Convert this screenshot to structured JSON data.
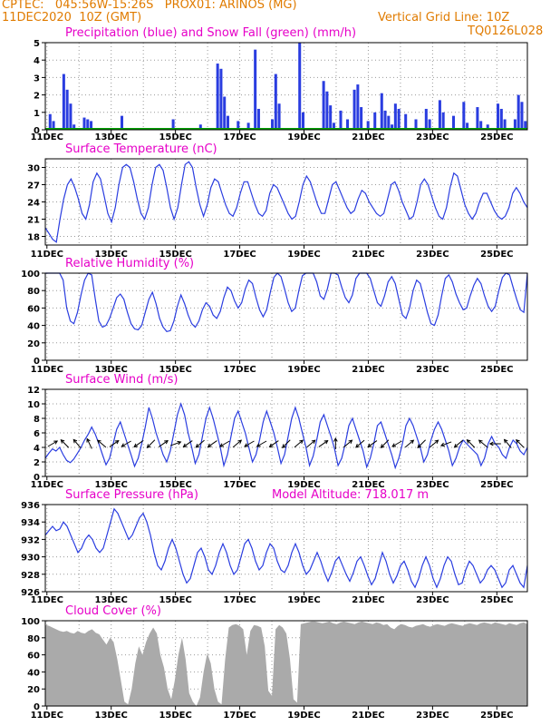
{
  "header": {
    "line1": "CPTEC:   045:56W-15:26S   PROX01: ARINOS (MG)",
    "line2_left": "11DEC2020  10Z (GMT)",
    "line2_right": "Vertical Grid Line: 10Z",
    "code": "TQ0126L028"
  },
  "colors": {
    "series": "#2a3de0",
    "snow": "#00a000",
    "title": "#e600c8",
    "header": "#e07b00",
    "cloud": "#aaaaaa"
  },
  "chart_data": [
    {
      "type": "bar",
      "title": "Precipitation (blue) and Snow Fall (green) (mm/h)",
      "x_tick_labels": [
        "11DEC",
        "13DEC",
        "15DEC",
        "17DEC",
        "19DEC",
        "21DEC",
        "23DEC",
        "25DEC"
      ],
      "y_ticks": [
        0,
        1,
        2,
        3,
        4,
        5
      ],
      "ylim": [
        0,
        5
      ],
      "series": [
        {
          "name": "Precipitation",
          "values": [
            0,
            0.9,
            0.5,
            0,
            0,
            3.2,
            2.3,
            1.5,
            0.3,
            0,
            0,
            0.7,
            0.6,
            0.5,
            0,
            0,
            0,
            0,
            0,
            0,
            0,
            0,
            0.8,
            0,
            0,
            0,
            0,
            0,
            0,
            0,
            0,
            0,
            0,
            0,
            0,
            0,
            0,
            0.6,
            0,
            0,
            0,
            0,
            0,
            0,
            0,
            0.3,
            0,
            0,
            0,
            0,
            3.8,
            3.5,
            1.9,
            0.8,
            0,
            0,
            0.5,
            0,
            0,
            0.4,
            0,
            4.6,
            1.2,
            0,
            0,
            0,
            0.6,
            3.2,
            1.5,
            0,
            0,
            0,
            0,
            0,
            5.0,
            1.0,
            0,
            0,
            0,
            0,
            0,
            2.8,
            2.2,
            1.4,
            0.4,
            0,
            1.1,
            0,
            0.6,
            0,
            2.3,
            2.6,
            1.3,
            0,
            0.5,
            0,
            1.0,
            0,
            2.1,
            1.1,
            0.8,
            0.3,
            1.5,
            1.2,
            0,
            0.9,
            0,
            0,
            0.6,
            0,
            0,
            1.2,
            0.6,
            0,
            0,
            1.7,
            1.0,
            0,
            0,
            0.8,
            0,
            0,
            1.6,
            0.4,
            0,
            0,
            1.3,
            0.5,
            0,
            0.3,
            0,
            0,
            1.5,
            1.2,
            0.6,
            0,
            0,
            0.6,
            2.0,
            1.6,
            0.5
          ]
        },
        {
          "name": "Snow Fall",
          "values": [
            0
          ]
        }
      ]
    },
    {
      "type": "line",
      "title": "Surface Temperature (nC)",
      "x_tick_labels": [
        "11DEC",
        "13DEC",
        "15DEC",
        "17DEC",
        "19DEC",
        "21DEC",
        "23DEC",
        "25DEC"
      ],
      "y_ticks": [
        18,
        21,
        24,
        27,
        30
      ],
      "ylim": [
        16.5,
        31.5
      ],
      "values": [
        19.5,
        18.5,
        17.5,
        17,
        21,
        24.5,
        27,
        28,
        26.5,
        24.5,
        22,
        21,
        23.5,
        27.5,
        29,
        28,
        25,
        22,
        20.5,
        23,
        27,
        30,
        30.5,
        30,
        27.5,
        24.5,
        22,
        21,
        23,
        27,
        30,
        30.5,
        29.5,
        26.5,
        23,
        21,
        23,
        27,
        30.5,
        31,
        30,
        26.5,
        23.5,
        21.5,
        23.5,
        26.5,
        28,
        27.5,
        25.5,
        23.5,
        22,
        21.5,
        23,
        25.5,
        27.5,
        27.5,
        25.5,
        23.5,
        22,
        21.5,
        22.5,
        25.5,
        27,
        26.5,
        25,
        23.5,
        22,
        21,
        21.5,
        24,
        27,
        28.5,
        27.5,
        25.5,
        23.5,
        22,
        22,
        24.5,
        27,
        27.5,
        26,
        24.5,
        23,
        22,
        22.5,
        24.5,
        26,
        25.5,
        24,
        23,
        22,
        21.5,
        22,
        24.5,
        27,
        27.5,
        26,
        24,
        22.5,
        21,
        21.5,
        24,
        27,
        28,
        27,
        25,
        23,
        21.5,
        21,
        23,
        26.5,
        29,
        28.5,
        26,
        23.5,
        22,
        21,
        22,
        24,
        25.5,
        25.5,
        24,
        22.5,
        21.5,
        21,
        21.5,
        23,
        25.5,
        26.5,
        25.5,
        24,
        23
      ]
    },
    {
      "type": "line",
      "title": "Relative Humidity (%)",
      "x_tick_labels": [
        "11DEC",
        "13DEC",
        "15DEC",
        "17DEC",
        "19DEC",
        "21DEC",
        "23DEC",
        "25DEC"
      ],
      "y_ticks": [
        0,
        20,
        40,
        60,
        80,
        100
      ],
      "ylim": [
        0,
        100
      ],
      "values": [
        100,
        100,
        100,
        100,
        100,
        92,
        60,
        45,
        42,
        55,
        75,
        92,
        100,
        98,
        70,
        45,
        38,
        40,
        48,
        60,
        72,
        76,
        70,
        55,
        42,
        36,
        35,
        40,
        55,
        70,
        78,
        65,
        48,
        38,
        33,
        34,
        45,
        62,
        75,
        65,
        52,
        42,
        38,
        45,
        58,
        66,
        62,
        52,
        48,
        56,
        72,
        84,
        80,
        68,
        60,
        66,
        82,
        92,
        88,
        72,
        58,
        50,
        58,
        78,
        95,
        100,
        96,
        82,
        66,
        56,
        60,
        80,
        97,
        100,
        100,
        100,
        90,
        74,
        70,
        82,
        100,
        100,
        98,
        84,
        72,
        66,
        75,
        94,
        100,
        100,
        100,
        94,
        80,
        66,
        62,
        74,
        90,
        96,
        88,
        70,
        52,
        48,
        60,
        80,
        92,
        88,
        72,
        55,
        42,
        40,
        52,
        74,
        94,
        98,
        90,
        76,
        66,
        58,
        60,
        74,
        86,
        94,
        88,
        74,
        62,
        56,
        62,
        80,
        95,
        100,
        98,
        84,
        70,
        58,
        55,
        100
      ]
    },
    {
      "type": "line",
      "title": "Surface Wind (m/s)",
      "x_tick_labels": [
        "11DEC",
        "13DEC",
        "15DEC",
        "17DEC",
        "19DEC",
        "21DEC",
        "23DEC",
        "25DEC"
      ],
      "y_ticks": [
        0,
        2,
        4,
        6,
        8,
        10,
        12
      ],
      "ylim": [
        0,
        12
      ],
      "values": [
        2.5,
        3.2,
        3.8,
        3.5,
        4,
        3,
        2.2,
        1.9,
        2.4,
        3.2,
        4,
        5,
        5.8,
        6.8,
        5.8,
        4.5,
        3,
        1.6,
        2.5,
        4.5,
        6.5,
        7.5,
        6,
        4.5,
        3,
        1.4,
        2.5,
        4.5,
        6.8,
        9.5,
        8,
        6,
        4.5,
        3,
        2,
        3.5,
        6,
        8.5,
        10,
        8.5,
        6,
        4,
        1.8,
        3,
        5.5,
        8,
        9.5,
        8,
        6,
        4,
        1.5,
        3,
        5.5,
        8,
        9,
        7.5,
        6,
        4,
        2,
        3,
        5,
        7.5,
        9,
        7.5,
        6,
        4,
        1.8,
        3,
        5.5,
        8,
        9.5,
        8,
        6,
        4,
        1.5,
        2.8,
        5,
        7.5,
        8.5,
        7,
        5.5,
        3.8,
        1.5,
        2.5,
        4.5,
        7,
        8,
        6.5,
        5,
        3.5,
        1.3,
        2.5,
        4.5,
        7,
        7.5,
        6,
        4.5,
        3,
        1.2,
        2.5,
        4.5,
        7,
        8,
        7,
        5.5,
        4,
        2,
        3,
        5,
        6.5,
        7.5,
        6.5,
        5,
        3.5,
        1.5,
        2.5,
        4,
        5,
        4.5,
        4,
        3.5,
        3,
        1.5,
        2.5,
        4.5,
        5.5,
        4.5,
        4,
        3,
        2.5,
        4,
        5,
        4.5,
        3.5,
        3,
        4
      ],
      "arrow_directions_deg": [
        30,
        135,
        130,
        115,
        140,
        35,
        210,
        215,
        225,
        35,
        20,
        215,
        220,
        215,
        210,
        40,
        210,
        210,
        215,
        225,
        40,
        40,
        35,
        90,
        40,
        220,
        215,
        225,
        210,
        40,
        225,
        40,
        200,
        220,
        135,
        140,
        180,
        130,
        135
      ]
    },
    {
      "type": "line",
      "title": "Surface Pressure (hPa)",
      "annotation": "Model Altitude: 718.017 m",
      "x_tick_labels": [
        "11DEC",
        "13DEC",
        "15DEC",
        "17DEC",
        "19DEC",
        "21DEC",
        "23DEC",
        "25DEC"
      ],
      "y_ticks": [
        926,
        928,
        930,
        932,
        934,
        936
      ],
      "ylim": [
        926,
        936
      ],
      "values": [
        932.5,
        933,
        933.5,
        933,
        933.2,
        934,
        933.5,
        932.5,
        931.5,
        930.5,
        931,
        932,
        932.5,
        932,
        931,
        930.5,
        931,
        932.5,
        934,
        935.5,
        935,
        934,
        933,
        932,
        932.5,
        933.5,
        934.5,
        935,
        934,
        932.5,
        930.5,
        929,
        928.5,
        929.5,
        931,
        932,
        931,
        929.5,
        928,
        927,
        927.5,
        929,
        930.5,
        931,
        930,
        928.5,
        928,
        929,
        930.5,
        931.5,
        930.5,
        929,
        928,
        928.5,
        930,
        931.5,
        932,
        931,
        929.5,
        928.5,
        929,
        930.5,
        931.5,
        931,
        929.5,
        928.5,
        928.2,
        929,
        930.5,
        931.5,
        930.5,
        929,
        928,
        928.5,
        929.5,
        930.5,
        929.5,
        928.2,
        927.2,
        928.2,
        929.5,
        930,
        929,
        928,
        927.2,
        928.2,
        929.5,
        930,
        929,
        927.8,
        926.8,
        927.5,
        929,
        930.5,
        929.5,
        928,
        927,
        927.8,
        929,
        929.5,
        928.5,
        927.2,
        926.5,
        927.5,
        929,
        930,
        929,
        927.5,
        926.5,
        927.5,
        929,
        930,
        929.5,
        928,
        926.8,
        927,
        928.5,
        929.5,
        929,
        928,
        927,
        927.5,
        928.5,
        929,
        928.5,
        927.5,
        926.5,
        927,
        928.5,
        929,
        928,
        927,
        926.5,
        929
      ]
    },
    {
      "type": "area",
      "title": "Cloud Cover (%)",
      "x_tick_labels": [
        "11DEC",
        "13DEC",
        "15DEC",
        "17DEC",
        "19DEC",
        "21DEC",
        "23DEC",
        "25DEC"
      ],
      "y_ticks": [
        0,
        20,
        40,
        60,
        80,
        100
      ],
      "ylim": [
        0,
        100
      ],
      "values": [
        95,
        94,
        92,
        90,
        88,
        87,
        88,
        86,
        85,
        88,
        86,
        85,
        88,
        90,
        86,
        84,
        78,
        72,
        80,
        75,
        55,
        30,
        5,
        2,
        20,
        50,
        70,
        60,
        75,
        85,
        92,
        85,
        60,
        45,
        20,
        8,
        30,
        60,
        80,
        55,
        15,
        5,
        0,
        10,
        40,
        62,
        50,
        20,
        5,
        2,
        55,
        92,
        95,
        96,
        94,
        90,
        60,
        88,
        95,
        94,
        92,
        70,
        18,
        12,
        90,
        95,
        92,
        85,
        55,
        8,
        4,
        96,
        97,
        98,
        99,
        99,
        98,
        97,
        98,
        99,
        97,
        96,
        98,
        99,
        98,
        97,
        96,
        98,
        99,
        98,
        97,
        96,
        98,
        97,
        95,
        96,
        92,
        90,
        94,
        96,
        95,
        93,
        92,
        94,
        95,
        96,
        94,
        93,
        95,
        96,
        95,
        94,
        96,
        97,
        96,
        95,
        94,
        96,
        97,
        96,
        95,
        97,
        98,
        97,
        96,
        98,
        97,
        96,
        95,
        97,
        96,
        95,
        97,
        98,
        96
      ]
    }
  ]
}
